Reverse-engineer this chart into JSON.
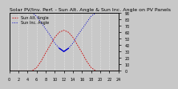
{
  "title": "Solar PV/Inv. Perf. - Sun Alt. Angle & Sun Inc. Angle on PV Panels",
  "legend_labels": [
    "Sun Alt. Angle",
    "Sun Inc. Angle"
  ],
  "x_values": [
    0,
    1,
    2,
    3,
    4,
    5,
    6,
    7,
    8,
    9,
    10,
    11,
    12,
    13,
    14,
    15,
    16,
    17,
    18,
    19,
    20,
    21,
    22,
    23,
    24
  ],
  "sun_altitude": [
    0,
    0,
    0,
    0,
    0,
    0,
    5,
    15,
    28,
    40,
    52,
    60,
    63,
    60,
    52,
    40,
    28,
    15,
    5,
    0,
    0,
    0,
    0,
    0,
    0
  ],
  "sun_incidence": [
    90,
    90,
    90,
    90,
    90,
    90,
    85,
    75,
    65,
    55,
    43,
    35,
    30,
    35,
    43,
    55,
    65,
    75,
    85,
    90,
    90,
    90,
    90,
    90,
    90
  ],
  "altitude_color": "#cc0000",
  "incidence_color": "#0000cc",
  "background_color": "#c8c8c8",
  "plot_bg_color": "#c8c8c8",
  "grid_color": "#ffffff",
  "ylim": [
    0,
    90
  ],
  "xlim": [
    0,
    24
  ],
  "x_ticks": [
    0,
    2,
    4,
    6,
    8,
    10,
    12,
    14,
    16,
    18,
    20,
    22,
    24
  ],
  "x_tick_labels": [
    "0",
    "2",
    "4",
    "6",
    "8",
    "10",
    "12",
    "14",
    "16",
    "18",
    "20",
    "22",
    "24"
  ],
  "y_ticks": [
    0,
    10,
    20,
    30,
    40,
    50,
    60,
    70,
    80,
    90
  ],
  "title_fontsize": 4.5,
  "tick_fontsize": 3.5,
  "legend_fontsize": 3.5
}
